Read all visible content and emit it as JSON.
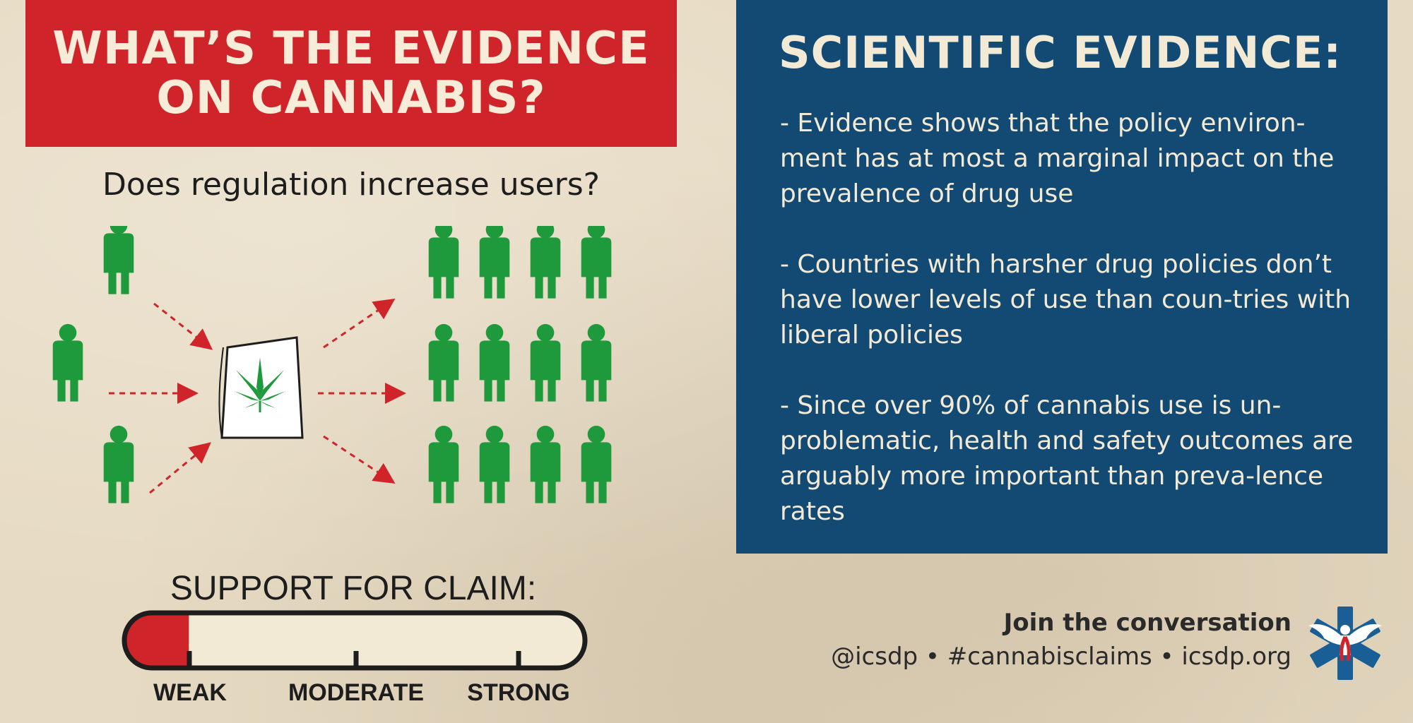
{
  "banner": {
    "title": "WHAT’S THE EVIDENCE ON CANNABIS?"
  },
  "question": "Does regulation increase users?",
  "diagram": {
    "icons": [
      "person-icon",
      "regulation-document-icon",
      "cannabis-leaf-icon",
      "arrow-icon"
    ],
    "colors": {
      "people": "#1e9a3c",
      "arrows": "#d0242b",
      "leaf": "#1e9a3c"
    }
  },
  "support": {
    "label": "SUPPORT FOR CLAIM:",
    "levels": [
      "WEAK",
      "MODERATE",
      "STRONG"
    ],
    "selected_level": "WEAK",
    "fill_fraction": 0.14,
    "fill_color": "#d0242b"
  },
  "evidence": {
    "heading": "SCIENTIFIC EVIDENCE:",
    "points": [
      "- Evidence shows that the policy environ-ment has at most a marginal impact on the prevalence of drug use",
      "- Countries with harsher drug policies don’t have lower levels of use than coun-tries with liberal policies",
      "- Since over 90% of cannabis use is un-problematic, health and safety outcomes are arguably more important than preva-lence rates"
    ]
  },
  "footer": {
    "cta": "Join the conversation",
    "links": "@icsdp • #cannabisclaims • icsdp.org",
    "logo_icon": "icsdp-logo-icon"
  },
  "colors": {
    "red": "#d0242b",
    "blue": "#124a73",
    "background": "#e6dac2",
    "text_light": "#f3ead6"
  }
}
